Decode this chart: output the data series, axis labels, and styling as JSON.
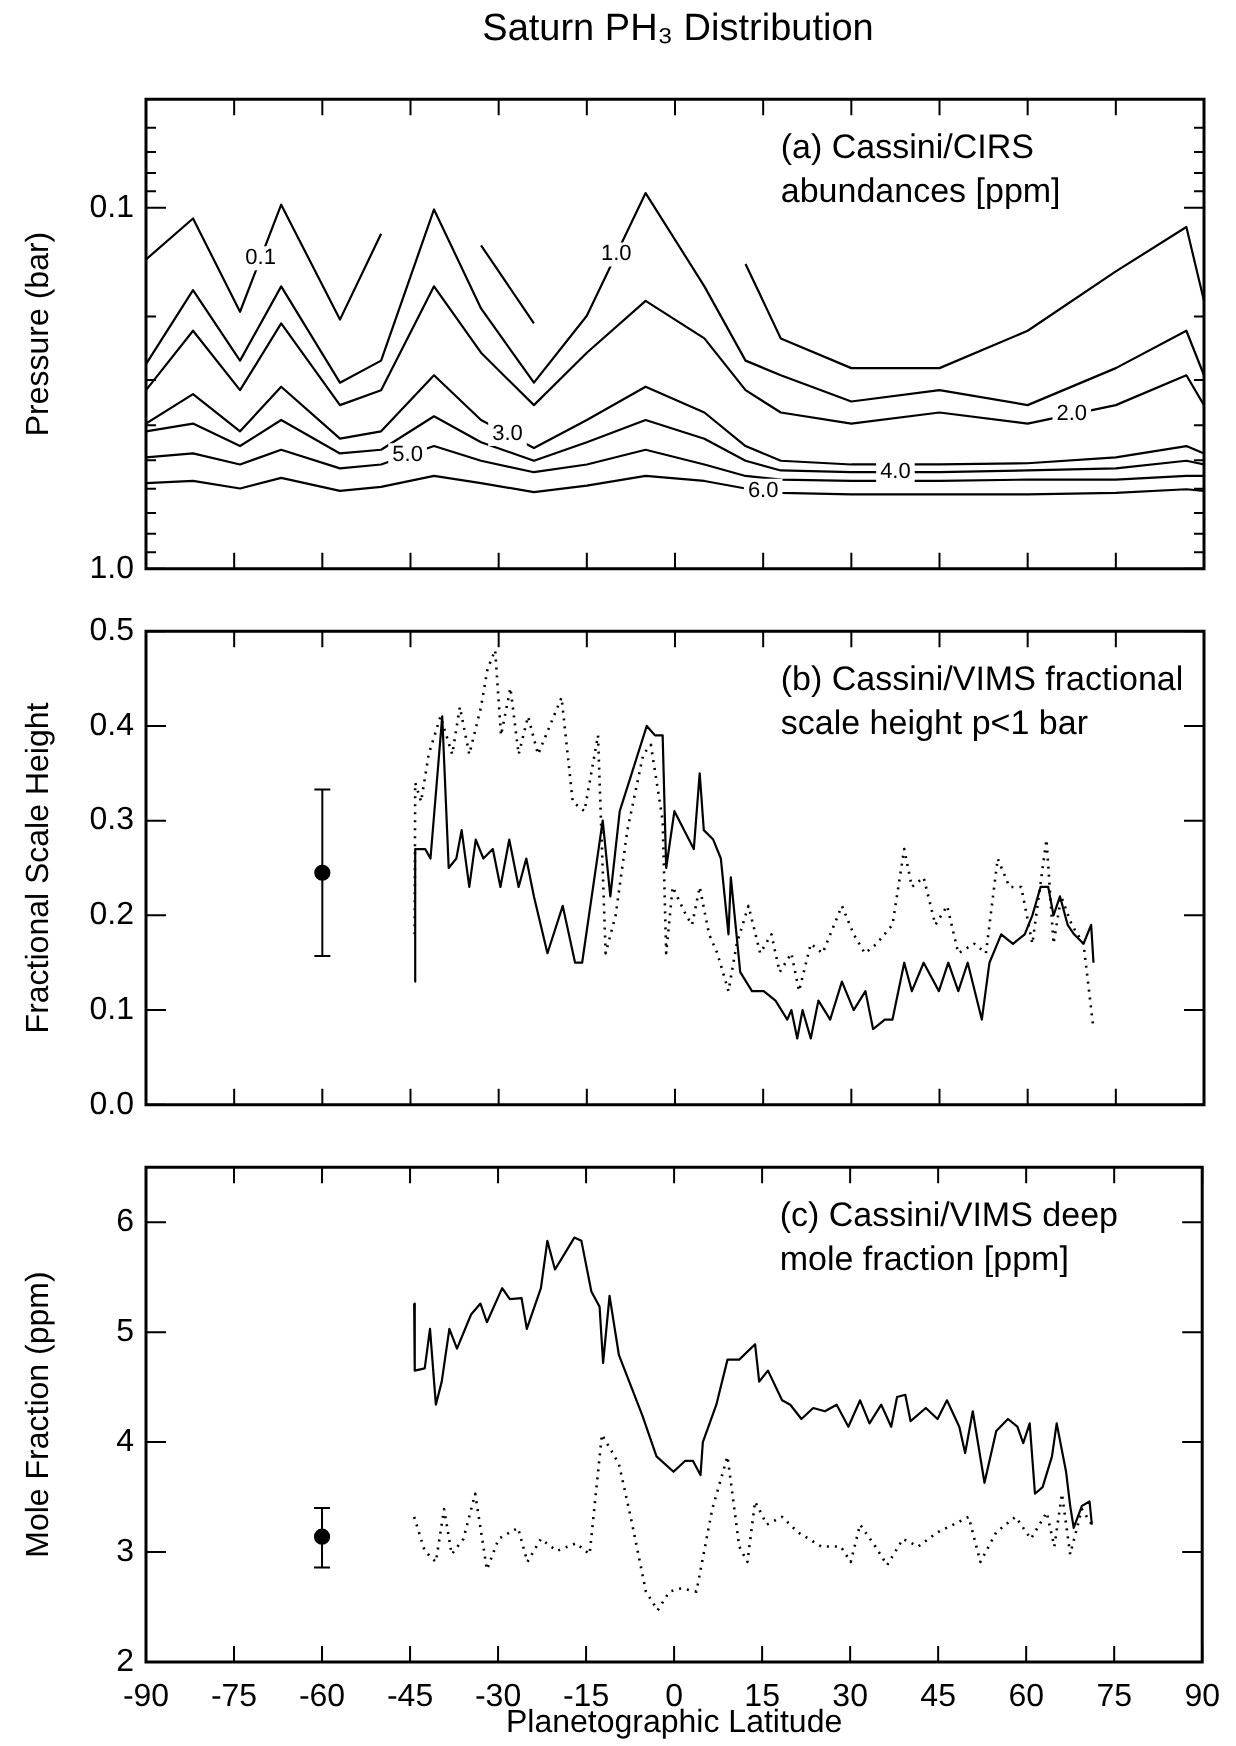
{
  "chart_data": [
    {
      "type": "line",
      "title": "Saturn PH₃ Distribution",
      "ylabel": "Pressure (bar)",
      "annotations": [
        "(a) Cassini/CIRS abundances [ppm]"
      ],
      "log": "y",
      "tick_labels": "y",
      "xlim": [
        -90,
        90
      ],
      "xticks": [
        -90,
        -75,
        -60,
        -45,
        -30,
        -15,
        0,
        15,
        30,
        45,
        60,
        75,
        90
      ],
      "ylim": [
        1,
        0.05
      ],
      "yticks": [
        {
          "value": 0.06,
          "label": null
        },
        {
          "value": 0.07,
          "label": null
        },
        {
          "value": 0.08,
          "label": null
        },
        {
          "value": 0.09,
          "label": null
        },
        0.1,
        {
          "value": 0.2,
          "label": null
        },
        {
          "value": 0.3,
          "label": null
        },
        {
          "value": 0.4,
          "label": null
        },
        {
          "value": 0.5,
          "label": null
        },
        {
          "value": 0.6,
          "label": null
        },
        {
          "value": 0.7,
          "label": null
        },
        {
          "value": 0.8,
          "label": null
        },
        {
          "value": 0.9,
          "label": null
        },
        {
          "value": 1,
          "label": "1.0"
        }
      ],
      "x": [
        -90,
        -82,
        -74,
        -67,
        -57,
        -50,
        -41,
        -33,
        -24,
        -15,
        -5,
        5,
        12,
        18,
        30,
        45,
        60,
        75,
        87,
        90
      ],
      "series": [
        {
          "name": "0.1",
          "color": "#000000",
          "values": [
            0.139,
            0.107,
            0.194,
            0.098,
            0.204,
            0.118,
            null,
            0.127,
            0.209,
            null,
            null,
            null,
            0.143,
            0.23,
            0.278,
            0.278,
            0.219,
            0.15,
            0.113,
            0.181
          ]
        },
        {
          "name": "1.0",
          "color": "#000000",
          "values": [
            0.271,
            0.169,
            0.265,
            0.165,
            0.305,
            0.265,
            0.101,
            0.19,
            0.305,
            0.199,
            0.091,
            0.165,
            0.265,
            0.291,
            0.344,
            0.32,
            0.352,
            0.278,
            0.219,
            0.291
          ]
        },
        {
          "name": "2.0",
          "color": "#000000",
          "values": [
            0.32,
            0.219,
            0.32,
            0.209,
            0.352,
            0.32,
            0.165,
            0.252,
            0.352,
            0.252,
            0.181,
            0.23,
            0.32,
            0.369,
            0.396,
            0.369,
            0.396,
            0.352,
            0.291,
            0.352
          ]
        },
        {
          "name": "3.0",
          "color": "#000000",
          "values": [
            0.396,
            0.328,
            0.416,
            0.313,
            0.436,
            0.416,
            0.291,
            0.387,
            0.463,
            0.387,
            0.313,
            0.369,
            0.457,
            0.502,
            0.514,
            0.514,
            0.51,
            0.491,
            0.457,
            0.479
          ]
        },
        {
          "name": "4.0",
          "color": "#000000",
          "values": [
            0.416,
            0.396,
            0.457,
            0.387,
            0.479,
            0.468,
            0.378,
            0.446,
            0.502,
            0.446,
            0.387,
            0.436,
            0.502,
            0.534,
            0.54,
            0.54,
            0.534,
            0.527,
            0.502,
            0.514
          ]
        },
        {
          "name": "5.0",
          "color": "#000000",
          "values": [
            0.491,
            0.479,
            0.514,
            0.468,
            0.527,
            0.514,
            0.457,
            0.502,
            0.54,
            0.514,
            0.468,
            0.514,
            0.553,
            0.566,
            0.571,
            0.571,
            0.566,
            0.566,
            0.553,
            0.553
          ]
        },
        {
          "name": "6.0",
          "color": "#000000",
          "values": [
            0.579,
            0.571,
            0.599,
            0.56,
            0.608,
            0.593,
            0.553,
            0.579,
            0.613,
            0.588,
            0.553,
            0.571,
            0.599,
            0.616,
            0.622,
            0.622,
            0.622,
            0.616,
            0.602,
            0.608
          ]
        }
      ]
    },
    {
      "type": "line",
      "ylabel": "Fractional Scale Height",
      "annotations": [
        "(b) Cassini/VIMS fractional scale height p<1 bar"
      ],
      "tick_labels": "y",
      "xlim": [
        -90,
        90
      ],
      "xticks": [
        -90,
        -75,
        -60,
        -45,
        -30,
        -15,
        0,
        15,
        30,
        45,
        60,
        75,
        90
      ],
      "ylim": [
        0,
        0.5
      ],
      "yticks": [
        {
          "value": 0,
          "label": "0.0"
        },
        0.1,
        0.2,
        0.3,
        0.4,
        0.5
      ],
      "series": [
        {
          "color": "#000000",
          "line_style": "solid",
          "marker": "none",
          "x": [
            -44.3,
            -44.2,
            -42.5,
            -41.6,
            -39.6,
            -38.5,
            -37.2,
            -36.3,
            -35,
            -33.9,
            -32.6,
            -31,
            -29.7,
            -28.2,
            -26.6,
            -25.3,
            -24,
            -21.7,
            -19.1,
            -17,
            -15.8,
            -12.3,
            -11,
            -9.4,
            -4.8,
            -3.4,
            -2.1,
            -1.5,
            -0.1,
            3.2,
            4.2,
            4.9,
            6.5,
            7.8,
            9.1,
            9.5,
            11.1,
            13.1,
            15.1,
            17.1,
            19.1,
            19.8,
            20.8,
            21.7,
            23.1,
            24.4,
            26.4,
            28.4,
            30.4,
            32.4,
            33.7,
            35.7,
            37,
            39,
            40.3,
            42.3,
            44.9,
            46.5,
            48.2,
            49.8,
            52.2,
            53.5,
            55.5,
            57.5,
            59.5,
            60.8,
            62.2,
            63.5,
            64.4,
            65.5,
            66.8,
            67.9,
            69.5,
            70.8,
            71.2
          ],
          "values": [
            0.13,
            0.27,
            0.27,
            0.26,
            0.41,
            0.25,
            0.26,
            0.29,
            0.23,
            0.28,
            0.26,
            0.27,
            0.23,
            0.28,
            0.23,
            0.26,
            0.22,
            0.16,
            0.21,
            0.15,
            0.15,
            0.3,
            0.22,
            0.31,
            0.4,
            0.39,
            0.39,
            0.25,
            0.31,
            0.27,
            0.35,
            0.29,
            0.28,
            0.26,
            0.18,
            0.24,
            0.14,
            0.12,
            0.12,
            0.11,
            0.09,
            0.1,
            0.07,
            0.1,
            0.07,
            0.11,
            0.09,
            0.13,
            0.1,
            0.12,
            0.08,
            0.09,
            0.09,
            0.15,
            0.12,
            0.15,
            0.12,
            0.15,
            0.12,
            0.15,
            0.09,
            0.15,
            0.18,
            0.17,
            0.18,
            0.2,
            0.23,
            0.23,
            0.2,
            0.22,
            0.19,
            0.18,
            0.17,
            0.19,
            0.15
          ]
        },
        {
          "color": "#000000",
          "line_style": "dotted",
          "marker": "none",
          "x": [
            -44.3,
            -44.2,
            -43.2,
            -41.9,
            -39.9,
            -37.9,
            -36.6,
            -35,
            -33,
            -31.9,
            -30.6,
            -29.6,
            -28,
            -26.6,
            -25,
            -23.3,
            -21.3,
            -19.3,
            -17.4,
            -15.4,
            -13.1,
            -11.8,
            -10.1,
            -8.1,
            -5.4,
            -4.1,
            -2.1,
            -1.5,
            -0.4,
            1.9,
            2.9,
            4.2,
            5.8,
            7.2,
            9.1,
            10.5,
            12.5,
            14.5,
            16.4,
            17.8,
            19.8,
            21.1,
            23.1,
            25.1,
            28.4,
            30.4,
            32.3,
            34.3,
            37,
            39,
            40.3,
            42.3,
            44.3,
            46.3,
            48.2,
            50.9,
            52.9,
            54.9,
            56.9,
            58.9,
            60.8,
            63.2,
            64.4,
            65.7,
            67.5,
            69.5,
            71.2
          ],
          "values": [
            0.18,
            0.34,
            0.32,
            0.37,
            0.41,
            0.37,
            0.42,
            0.37,
            0.42,
            0.46,
            0.48,
            0.39,
            0.44,
            0.37,
            0.41,
            0.37,
            0.4,
            0.43,
            0.32,
            0.31,
            0.39,
            0.16,
            0.2,
            0.29,
            0.37,
            0.38,
            0.3,
            0.16,
            0.23,
            0.2,
            0.19,
            0.23,
            0.18,
            0.16,
            0.12,
            0.17,
            0.21,
            0.16,
            0.18,
            0.14,
            0.16,
            0.12,
            0.17,
            0.16,
            0.21,
            0.18,
            0.16,
            0.17,
            0.19,
            0.27,
            0.23,
            0.24,
            0.19,
            0.21,
            0.16,
            0.17,
            0.16,
            0.26,
            0.23,
            0.23,
            0.17,
            0.28,
            0.17,
            0.22,
            0.19,
            0.17,
            0.08
          ]
        },
        {
          "type": "scatter",
          "color": "#000000",
          "marker": "circle",
          "x": [
            -60
          ],
          "values": [
            0.245
          ],
          "errors": [
            [
              0.157,
              0.333
            ]
          ]
        }
      ]
    },
    {
      "type": "line",
      "ylabel": "Mole Fraction (ppm)",
      "xlabel": "Planetographic Latitude",
      "annotations": [
        "(c) Cassini/VIMS deep mole fraction [ppm]"
      ],
      "xlim": [
        -90,
        90
      ],
      "xticks": [
        -90,
        -75,
        -60,
        -45,
        -30,
        -15,
        0,
        15,
        30,
        45,
        60,
        75,
        90
      ],
      "ylim": [
        2,
        6.5
      ],
      "yticks": [
        2,
        3,
        4,
        5,
        6
      ],
      "series": [
        {
          "color": "#000000",
          "line_style": "solid",
          "marker": "none",
          "x": [
            -44.3,
            -44.2,
            -42.5,
            -41.6,
            -40.6,
            -39.6,
            -38.3,
            -37,
            -34.6,
            -33,
            -31.9,
            -29.3,
            -28,
            -26,
            -25.1,
            -22.7,
            -21.6,
            -20.3,
            -18.7,
            -17,
            -15.8,
            -14.1,
            -12.7,
            -12.1,
            -11,
            -9.4,
            -5.4,
            -3,
            -0.1,
            1.9,
            3.2,
            4.5,
            4.9,
            7.2,
            9.1,
            11.1,
            13.8,
            14.5,
            16,
            18.4,
            19.8,
            21.7,
            23.7,
            25.7,
            27.7,
            29.7,
            31.7,
            33.3,
            35.3,
            37,
            38,
            39.4,
            40.3,
            42.9,
            44.9,
            46.5,
            48.6,
            49.6,
            50.9,
            52.9,
            54.9,
            56.9,
            58.5,
            59.5,
            60.6,
            61.5,
            62.8,
            64.4,
            65.2,
            66.8,
            67.5,
            68.1,
            69.5,
            70.8,
            71.2
          ],
          "values": [
            5.26,
            4.65,
            4.67,
            5.03,
            4.34,
            4.55,
            5.03,
            4.85,
            5.16,
            5.26,
            5.09,
            5.4,
            5.3,
            5.31,
            5.03,
            5.4,
            5.83,
            5.57,
            5.71,
            5.86,
            5.83,
            5.37,
            5.23,
            4.72,
            5.33,
            4.79,
            4.24,
            3.87,
            3.73,
            3.83,
            3.83,
            3.7,
            4.0,
            4.34,
            4.75,
            4.75,
            4.89,
            4.55,
            4.65,
            4.38,
            4.34,
            4.21,
            4.31,
            4.28,
            4.34,
            4.14,
            4.38,
            4.17,
            4.34,
            4.14,
            4.41,
            4.43,
            4.19,
            4.31,
            4.21,
            4.38,
            4.14,
            3.9,
            4.28,
            3.63,
            4.1,
            4.21,
            4.14,
            3.99,
            4.17,
            3.53,
            3.59,
            3.87,
            4.17,
            3.73,
            3.42,
            3.22,
            3.42,
            3.46,
            3.25
          ]
        },
        {
          "color": "#000000",
          "line_style": "dotted",
          "marker": "none",
          "x": [
            -44.3,
            -42.5,
            -40.6,
            -39.2,
            -37.9,
            -35.9,
            -33.9,
            -31.9,
            -29.9,
            -26.6,
            -25,
            -22.7,
            -20,
            -16.7,
            -14.4,
            -12.3,
            -9.4,
            -7.4,
            -4.8,
            -2.8,
            -0.8,
            1.2,
            3.8,
            6.5,
            9.1,
            11.1,
            12.5,
            13.8,
            15.8,
            18.4,
            21.1,
            25.1,
            28.4,
            30.1,
            31.7,
            34.3,
            36.3,
            39,
            41.6,
            44.9,
            47.6,
            50.2,
            52.2,
            54.9,
            58.2,
            60.8,
            63.5,
            64.8,
            66.1,
            67.5,
            69.5,
            71.2
          ],
          "values": [
            3.32,
            3.01,
            2.91,
            3.39,
            2.98,
            3.12,
            3.53,
            2.84,
            3.12,
            3.22,
            2.91,
            3.12,
            3.01,
            3.08,
            2.98,
            4.07,
            3.8,
            3.32,
            2.64,
            2.47,
            2.64,
            2.67,
            2.64,
            3.39,
            3.87,
            3.05,
            2.91,
            3.46,
            3.25,
            3.32,
            3.18,
            3.05,
            3.05,
            2.91,
            3.25,
            3.05,
            2.88,
            3.12,
            3.05,
            3.18,
            3.25,
            3.32,
            2.91,
            3.18,
            3.32,
            3.12,
            3.36,
            3.05,
            3.53,
            2.98,
            3.39,
            3.25
          ]
        },
        {
          "type": "scatter",
          "color": "#000000",
          "marker": "circle",
          "x": [
            -60
          ],
          "values": [
            3.14
          ],
          "errors": [
            [
              2.86,
              3.4
            ]
          ]
        }
      ]
    }
  ]
}
